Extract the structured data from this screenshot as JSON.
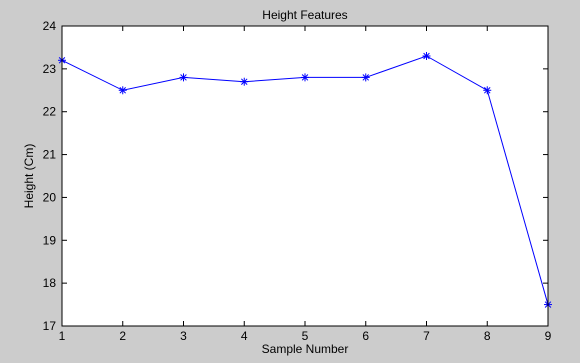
{
  "chart_data": {
    "type": "line",
    "title": "Height Features",
    "xlabel": "Sample Number",
    "ylabel": "Height (Cm)",
    "xlim": [
      1,
      9
    ],
    "ylim": [
      17,
      24
    ],
    "xticks": [
      1,
      2,
      3,
      4,
      5,
      6,
      7,
      8,
      9
    ],
    "yticks": [
      17,
      18,
      19,
      20,
      21,
      22,
      23,
      24
    ],
    "grid": false,
    "series": [
      {
        "x": [
          1,
          2,
          3,
          4,
          5,
          6,
          7,
          8,
          9
        ],
        "y": [
          23.2,
          22.5,
          22.8,
          22.7,
          22.8,
          22.8,
          23.3,
          22.5,
          17.5
        ],
        "color": "#0000ff",
        "marker": "*"
      }
    ]
  }
}
